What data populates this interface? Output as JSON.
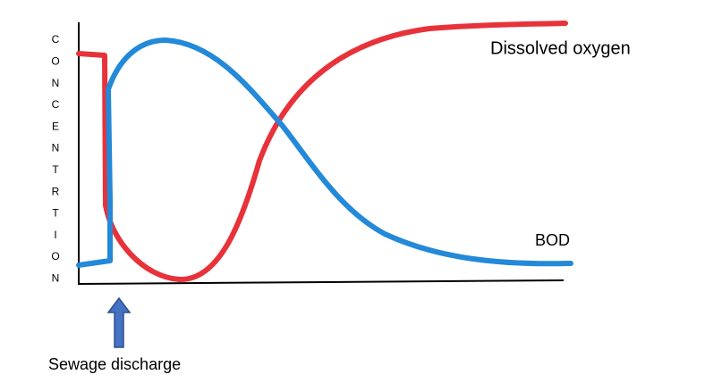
{
  "y_axis_label_letters": [
    "C",
    "O",
    "N",
    "C",
    "E",
    "N",
    "T",
    "R",
    "T",
    "I",
    "O",
    "N"
  ],
  "curve_labels": {
    "dissolved_oxygen": "Dissolved oxygen",
    "bod": "BOD"
  },
  "arrow_label": "Sewage discharge"
}
